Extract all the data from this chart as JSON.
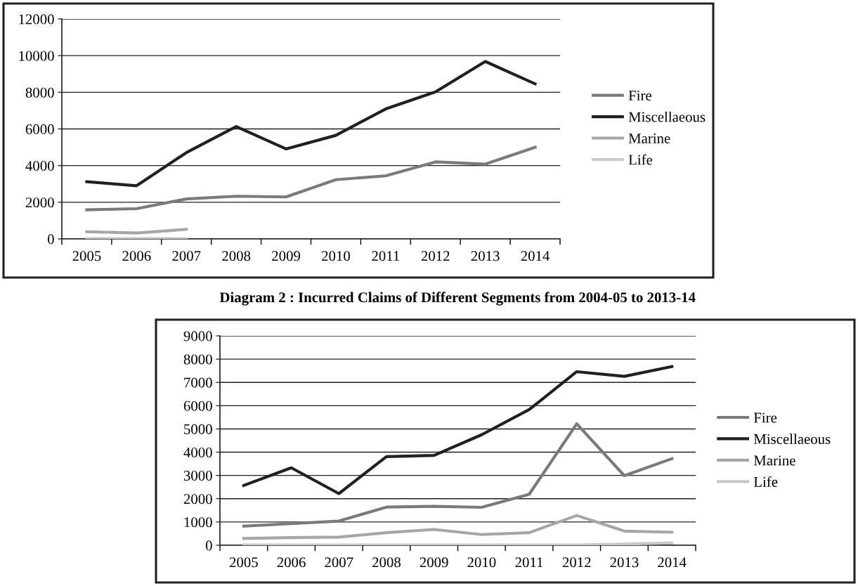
{
  "chart_data": [
    {
      "type": "line",
      "categories": [
        "2005",
        "2006",
        "2007",
        "2008",
        "2009",
        "2010",
        "2011",
        "2012",
        "2013",
        "2014"
      ],
      "ylim": [
        0,
        12000
      ],
      "yticks": [
        0,
        2000,
        4000,
        6000,
        8000,
        10000,
        12000
      ],
      "grid": "y",
      "legend": "right",
      "marker": "none",
      "line_style": "solid",
      "series": [
        {
          "name": "Fire",
          "color": "#7a7a7a",
          "values": [
            1590,
            1650,
            2180,
            2330,
            2290,
            3230,
            3440,
            4200,
            4080,
            5000
          ]
        },
        {
          "name": "Miscellaeous",
          "color": "#231f20",
          "values": [
            3120,
            2900,
            4710,
            6130,
            4910,
            5650,
            7090,
            8020,
            9680,
            8460
          ]
        },
        {
          "name": "Marine",
          "color": "#a6a6a6",
          "values": [
            390,
            320,
            520,
            null,
            null,
            null,
            null,
            null,
            null,
            null
          ]
        },
        {
          "name": "Life",
          "color": "#c8c8c8",
          "values": [
            20,
            20,
            20,
            null,
            null,
            null,
            null,
            null,
            null,
            null
          ]
        }
      ]
    },
    {
      "type": "line",
      "title": "Diagram 2 : Incurred Claims of Different Segments from 2004-05 to 2013-14",
      "categories": [
        "2005",
        "2006",
        "2007",
        "2008",
        "2009",
        "2010",
        "2011",
        "2012",
        "2013",
        "2014"
      ],
      "ylim": [
        0,
        9000
      ],
      "yticks": [
        0,
        1000,
        2000,
        3000,
        4000,
        5000,
        6000,
        7000,
        8000,
        9000
      ],
      "grid": "y",
      "legend": "right",
      "marker": "none",
      "line_style": "solid",
      "series": [
        {
          "name": "Fire",
          "color": "#7a7a7a",
          "values": [
            820,
            930,
            1040,
            1640,
            1670,
            1630,
            2190,
            5220,
            2990,
            3720
          ]
        },
        {
          "name": "Miscellaeous",
          "color": "#231f20",
          "values": [
            2570,
            3330,
            2220,
            3810,
            3860,
            4750,
            5830,
            7460,
            7260,
            7680
          ]
        },
        {
          "name": "Marine",
          "color": "#a6a6a6",
          "values": [
            290,
            330,
            350,
            540,
            680,
            460,
            540,
            1280,
            610,
            560
          ]
        },
        {
          "name": "Life",
          "color": "#c8c8c8",
          "values": [
            10,
            10,
            10,
            10,
            10,
            10,
            10,
            10,
            50,
            100
          ]
        }
      ]
    }
  ]
}
